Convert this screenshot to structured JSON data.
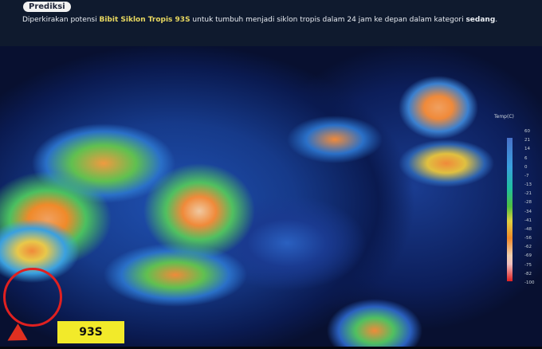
{
  "header": {
    "badge": "Prediksi",
    "text_before": "Diperkirakan potensi ",
    "highlight": "Bibit Siklon Tropis 93S",
    "text_after": " untuk tumbuh menjadi siklon tropis dalam 24 jam ke depan dalam kategori ",
    "category": "sedang",
    "period": "."
  },
  "legend": {
    "title": "Temp(C)",
    "ticks": [
      "60",
      "21",
      "14",
      "6",
      "0",
      "-7",
      "-13",
      "-21",
      "-28",
      "-34",
      "-41",
      "-48",
      "-56",
      "-62",
      "-69",
      "-75",
      "-82",
      "-100"
    ]
  },
  "annotation": {
    "label": "93S",
    "circle_color": "#e02020",
    "label_bg": "#f2ea2a"
  }
}
